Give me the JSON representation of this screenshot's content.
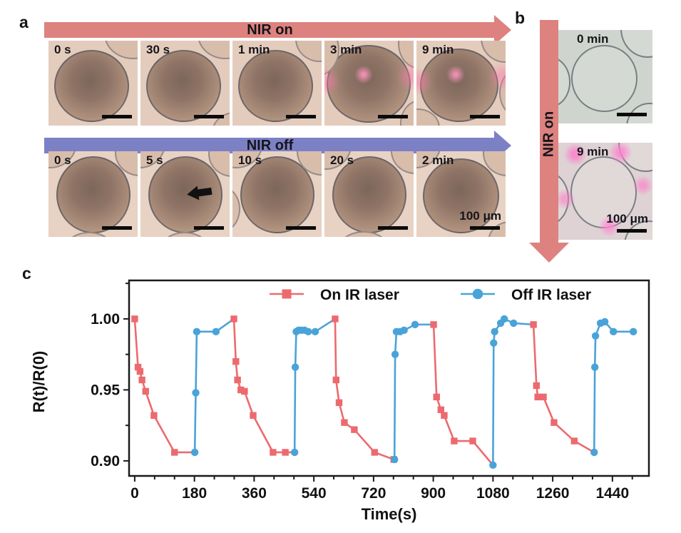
{
  "panel_a": {
    "label": "a",
    "nir_on_arrow": {
      "label": "NIR on",
      "color": "#dd827f"
    },
    "nir_off_arrow": {
      "label": "NIR off",
      "color": "#7c81c5"
    },
    "on_sequence_times": [
      "0 s",
      "30 s",
      "1 min",
      "3 min",
      "9 min"
    ],
    "off_sequence_times": [
      "0 s",
      "5 s",
      "10 s",
      "20 s",
      "2 min"
    ],
    "scale_label": "100 μm"
  },
  "panel_b": {
    "label": "b",
    "arrow": {
      "label": "NIR on",
      "color": "#dd827f"
    },
    "sequence_times": [
      "0 min",
      "9 min"
    ],
    "scale_label": "100 μm"
  },
  "panel_c": {
    "label": "c",
    "chart_data": {
      "type": "line",
      "title": "",
      "xlabel": "Time(s)",
      "ylabel": "R(t)/R(0)",
      "xlim": [
        -17,
        1550
      ],
      "ylim": [
        0.8894,
        1.0271
      ],
      "xticks": [
        0,
        180,
        360,
        540,
        720,
        900,
        1080,
        1260,
        1440
      ],
      "yticks": [
        0.9,
        0.95,
        1.0
      ],
      "ytick_labels": [
        "0.90",
        "0.95",
        "1.00"
      ],
      "x_minor_step": 60,
      "y_minor_step": 0.025,
      "grid": false,
      "legend_position": "top-inside",
      "frame_color": "#1a1a1a",
      "series": [
        {
          "key": "on",
          "name": "On IR laser",
          "color": "#ec6a6e",
          "marker": "square"
        },
        {
          "key": "off",
          "name": "Off IR laser",
          "color": "#4aa3d8",
          "marker": "circle"
        }
      ],
      "points": [
        [
          0,
          1.0,
          "on"
        ],
        [
          10,
          0.966,
          "on"
        ],
        [
          16,
          0.963,
          "on"
        ],
        [
          22,
          0.957,
          "on"
        ],
        [
          33,
          0.949,
          "on"
        ],
        [
          58,
          0.932,
          "on"
        ],
        [
          120,
          0.906,
          "on"
        ],
        [
          181,
          0.906,
          "off"
        ],
        [
          184,
          0.948,
          "off"
        ],
        [
          187,
          0.991,
          "off"
        ],
        [
          245,
          0.991,
          "off"
        ],
        [
          299,
          1.0,
          "on"
        ],
        [
          305,
          0.97,
          "on"
        ],
        [
          310,
          0.957,
          "on"
        ],
        [
          320,
          0.95,
          "on"
        ],
        [
          331,
          0.949,
          "on"
        ],
        [
          357,
          0.932,
          "on"
        ],
        [
          417,
          0.906,
          "on"
        ],
        [
          454,
          0.906,
          "on"
        ],
        [
          482,
          0.906,
          "off"
        ],
        [
          484,
          0.966,
          "off"
        ],
        [
          487,
          0.991,
          "off"
        ],
        [
          494,
          0.992,
          "off"
        ],
        [
          502,
          0.992,
          "off"
        ],
        [
          512,
          0.992,
          "off"
        ],
        [
          523,
          0.991,
          "off"
        ],
        [
          544,
          0.991,
          "off"
        ],
        [
          604,
          1.0,
          "on"
        ],
        [
          607,
          0.957,
          "on"
        ],
        [
          616,
          0.941,
          "on"
        ],
        [
          632,
          0.927,
          "on"
        ],
        [
          662,
          0.922,
          "on"
        ],
        [
          723,
          0.906,
          "on"
        ],
        [
          781,
          0.901,
          "on"
        ],
        [
          783,
          0.901,
          "off"
        ],
        [
          785,
          0.975,
          "off"
        ],
        [
          789,
          0.991,
          "off"
        ],
        [
          800,
          0.991,
          "off"
        ],
        [
          812,
          0.992,
          "off"
        ],
        [
          845,
          0.996,
          "off"
        ],
        [
          901,
          0.996,
          "on"
        ],
        [
          910,
          0.945,
          "on"
        ],
        [
          923,
          0.936,
          "on"
        ],
        [
          933,
          0.932,
          "on"
        ],
        [
          963,
          0.914,
          "on"
        ],
        [
          1019,
          0.914,
          "on"
        ],
        [
          1080,
          0.897,
          "off"
        ],
        [
          1082,
          0.983,
          "off"
        ],
        [
          1085,
          0.991,
          "off"
        ],
        [
          1103,
          0.997,
          "off"
        ],
        [
          1114,
          1.0,
          "off"
        ],
        [
          1142,
          0.997,
          "off"
        ],
        [
          1202,
          0.996,
          "on"
        ],
        [
          1211,
          0.953,
          "on"
        ],
        [
          1215,
          0.945,
          "on"
        ],
        [
          1232,
          0.945,
          "on"
        ],
        [
          1264,
          0.927,
          "on"
        ],
        [
          1325,
          0.914,
          "on"
        ],
        [
          1385,
          0.906,
          "off"
        ],
        [
          1387,
          0.966,
          "off"
        ],
        [
          1389,
          0.988,
          "off"
        ],
        [
          1404,
          0.997,
          "off"
        ],
        [
          1417,
          0.998,
          "off"
        ],
        [
          1443,
          0.991,
          "off"
        ],
        [
          1503,
          0.991,
          "off"
        ]
      ]
    }
  }
}
